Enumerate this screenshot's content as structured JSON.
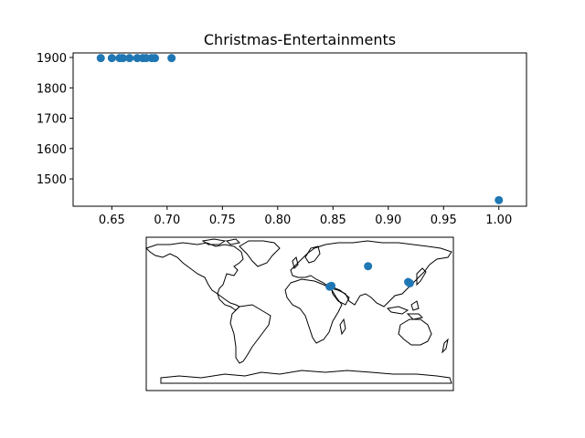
{
  "chart_data": [
    {
      "type": "scatter",
      "title": "Christmas-Entertainments",
      "xlabel": "",
      "ylabel": "",
      "xlim": [
        0.615,
        1.025
      ],
      "ylim": [
        1410,
        1915
      ],
      "xticks": [
        0.65,
        0.7,
        0.75,
        0.8,
        0.85,
        0.9,
        0.95,
        1.0
      ],
      "xtick_labels": [
        "0.65",
        "0.70",
        "0.75",
        "0.80",
        "0.85",
        "0.90",
        "0.95",
        "1.00"
      ],
      "yticks": [
        1500,
        1600,
        1700,
        1800,
        1900
      ],
      "ytick_labels": [
        "1500",
        "1600",
        "1700",
        "1800",
        "1900"
      ],
      "grid": false,
      "color": "#1f77b4",
      "points": [
        {
          "x": 0.64,
          "y": 1898
        },
        {
          "x": 0.65,
          "y": 1898
        },
        {
          "x": 0.657,
          "y": 1898
        },
        {
          "x": 0.66,
          "y": 1898
        },
        {
          "x": 0.666,
          "y": 1898
        },
        {
          "x": 0.673,
          "y": 1898
        },
        {
          "x": 0.678,
          "y": 1898
        },
        {
          "x": 0.681,
          "y": 1898
        },
        {
          "x": 0.686,
          "y": 1898
        },
        {
          "x": 0.689,
          "y": 1898
        },
        {
          "x": 0.704,
          "y": 1898
        },
        {
          "x": 1.0,
          "y": 1430
        }
      ]
    },
    {
      "type": "map",
      "projection": "equirectangular",
      "coastlines": true,
      "color": "#1f77b4",
      "points": [
        {
          "lon": 35.0,
          "lat": 32.0
        },
        {
          "lon": 37.0,
          "lat": 33.0
        },
        {
          "lon": 80.0,
          "lat": 56.0
        },
        {
          "lon": 127.0,
          "lat": 37.5
        },
        {
          "lon": 129.0,
          "lat": 36.0
        }
      ]
    }
  ]
}
